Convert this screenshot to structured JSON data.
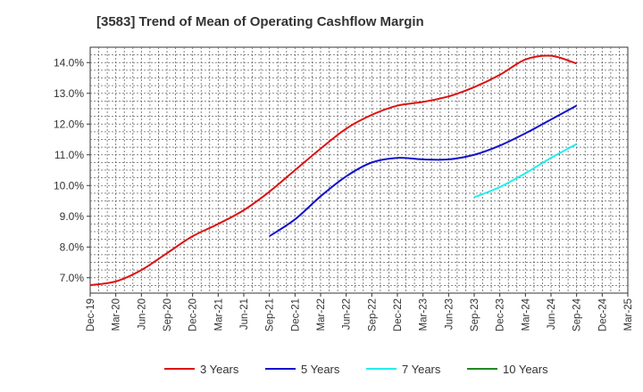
{
  "chart_data": {
    "type": "line",
    "title": "[3583]  Trend of Mean of Operating Cashflow Margin",
    "xlabel": "",
    "ylabel": "",
    "ylim": [
      6.5,
      14.5
    ],
    "yticks": [
      7.0,
      8.0,
      9.0,
      10.0,
      11.0,
      12.0,
      13.0,
      14.0
    ],
    "ytick_labels": [
      "7.0%",
      "8.0%",
      "9.0%",
      "10.0%",
      "11.0%",
      "12.0%",
      "13.0%",
      "14.0%"
    ],
    "x_categories": [
      "Dec-19",
      "Mar-20",
      "Jun-20",
      "Sep-20",
      "Dec-20",
      "Mar-21",
      "Jun-21",
      "Sep-21",
      "Dec-21",
      "Mar-22",
      "Jun-22",
      "Sep-22",
      "Dec-22",
      "Mar-23",
      "Jun-23",
      "Sep-23",
      "Dec-23",
      "Mar-24",
      "Jun-24",
      "Sep-24",
      "Dec-24",
      "Mar-25"
    ],
    "grid": true,
    "legend_position": "bottom",
    "series": [
      {
        "name": "3 Years",
        "color": "#dd1111",
        "x": [
          "Dec-19",
          "Mar-20",
          "Jun-20",
          "Sep-20",
          "Dec-20",
          "Mar-21",
          "Jun-21",
          "Sep-21",
          "Dec-21",
          "Mar-22",
          "Jun-22",
          "Sep-22",
          "Dec-22",
          "Mar-23",
          "Jun-23",
          "Sep-23",
          "Dec-23",
          "Mar-24",
          "Jun-24",
          "Sep-24"
        ],
        "values": [
          6.76,
          6.88,
          7.25,
          7.8,
          8.35,
          8.75,
          9.2,
          9.8,
          10.5,
          11.2,
          11.85,
          12.3,
          12.6,
          12.72,
          12.9,
          13.2,
          13.6,
          14.1,
          14.22,
          13.97
        ]
      },
      {
        "name": "5 Years",
        "color": "#1111cc",
        "x": [
          "Sep-21",
          "Dec-21",
          "Mar-22",
          "Jun-22",
          "Sep-22",
          "Dec-22",
          "Mar-23",
          "Jun-23",
          "Sep-23",
          "Dec-23",
          "Mar-24",
          "Jun-24",
          "Sep-24"
        ],
        "values": [
          8.35,
          8.9,
          9.65,
          10.3,
          10.75,
          10.9,
          10.85,
          10.85,
          11.0,
          11.3,
          11.7,
          12.15,
          12.6
        ]
      },
      {
        "name": "7 Years",
        "color": "#22eeee",
        "x": [
          "Sep-23",
          "Dec-23",
          "Mar-24",
          "Jun-24",
          "Sep-24"
        ],
        "values": [
          9.62,
          9.95,
          10.4,
          10.9,
          11.35
        ]
      },
      {
        "name": "10 Years",
        "color": "#228822",
        "x": [],
        "values": []
      }
    ]
  }
}
